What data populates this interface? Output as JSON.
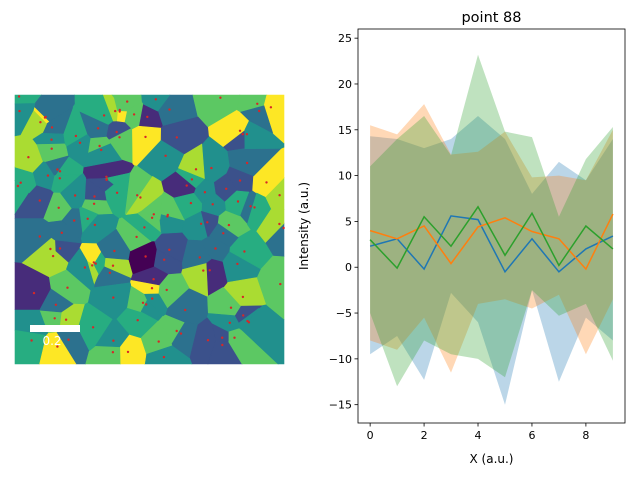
{
  "chart_data": [
    {
      "type": "heatmap",
      "subtype": "voronoi-map",
      "colormap": "viridis",
      "point_marker_color": "#d62728",
      "scalebar": {
        "label": "0.2",
        "color": "#ffffff"
      },
      "axes_visible": false
    },
    {
      "type": "line",
      "title": "point 88",
      "xlabel": "X (a.u.)",
      "ylabel": "Intensity (a.u.)",
      "xlim": [
        -0.45,
        9.45
      ],
      "ylim": [
        -17,
        26
      ],
      "xticks": [
        0,
        2,
        4,
        6,
        8
      ],
      "yticks": [
        -15,
        -10,
        -5,
        0,
        5,
        10,
        15,
        20,
        25
      ],
      "grid": false,
      "x": [
        0,
        1,
        2,
        3,
        4,
        5,
        6,
        7,
        8,
        9
      ],
      "series": [
        {
          "color": "#1f77b4",
          "values": [
            2.3,
            3.1,
            -0.2,
            5.6,
            5.2,
            -0.5,
            3.1,
            -0.5,
            2.0,
            3.4
          ],
          "band_upper": [
            14.3,
            14.0,
            13.0,
            14.0,
            16.5,
            14.0,
            8.0,
            11.5,
            9.5,
            14.0
          ],
          "band_lower": [
            -9.5,
            -7.5,
            -12.3,
            -2.8,
            -6.0,
            -15.0,
            -2.5,
            -12.5,
            -5.5,
            -8.0
          ]
        },
        {
          "color": "#ff7f0e",
          "values": [
            4.0,
            3.1,
            4.5,
            0.4,
            4.4,
            5.4,
            3.9,
            3.1,
            -0.2,
            5.8
          ],
          "band_upper": [
            15.5,
            14.5,
            17.8,
            12.3,
            12.6,
            14.8,
            9.8,
            10.0,
            9.5,
            15.0
          ],
          "band_lower": [
            -8.0,
            -9.0,
            -5.5,
            -11.5,
            -4.0,
            -3.5,
            -4.5,
            -3.0,
            -9.5,
            -3.5
          ]
        },
        {
          "color": "#2ca02c",
          "values": [
            3.0,
            -0.1,
            5.5,
            2.3,
            6.6,
            1.3,
            5.9,
            0.2,
            4.5,
            2.0
          ],
          "band_upper": [
            11.0,
            14.0,
            16.5,
            12.2,
            23.2,
            14.8,
            14.2,
            5.5,
            11.8,
            15.3
          ],
          "band_lower": [
            -5.0,
            -13.0,
            -8.0,
            -9.5,
            -10.0,
            -12.0,
            -2.5,
            -5.3,
            -4.0,
            -10.2
          ]
        }
      ]
    }
  ]
}
